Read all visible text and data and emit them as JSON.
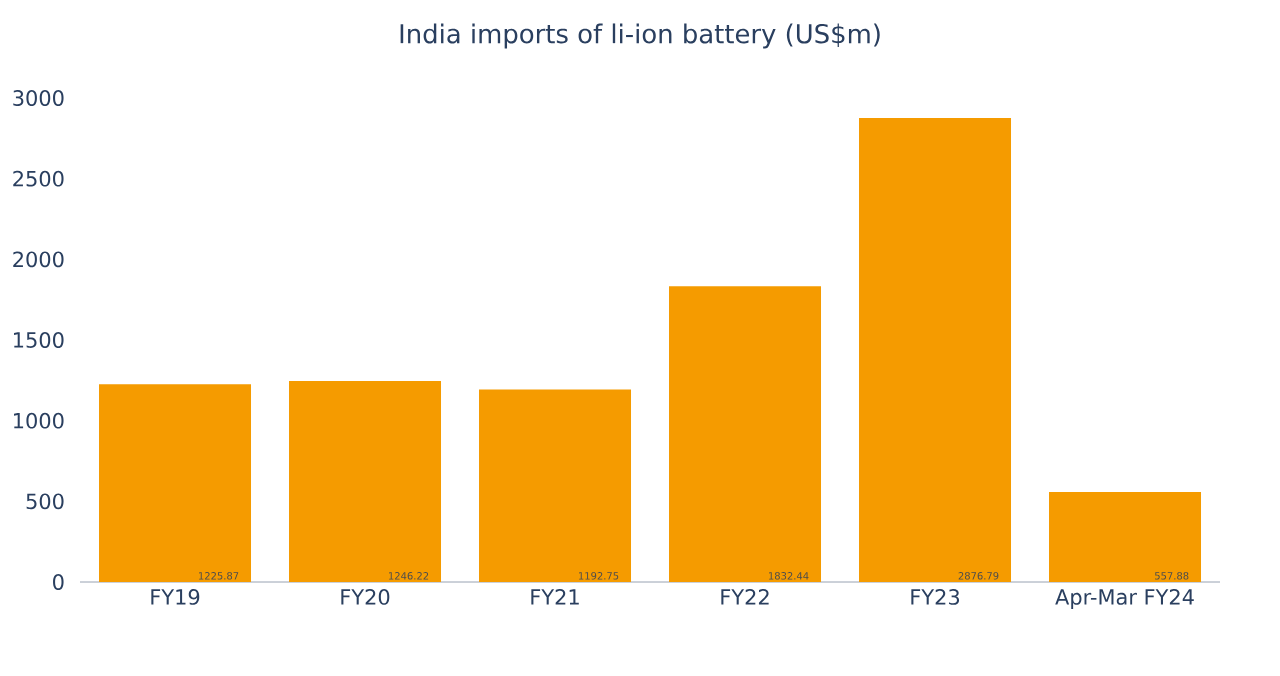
{
  "chart_data": {
    "type": "bar",
    "title": "India imports of li-ion battery (US$m)",
    "categories": [
      "FY19",
      "FY20",
      "FY21",
      "FY22",
      "FY23",
      "Apr-Mar FY24"
    ],
    "values": [
      1225.87,
      1246.22,
      1192.75,
      1832.44,
      2876.79,
      557.88
    ],
    "color": "#f59b00",
    "ylim": [
      0,
      3000
    ],
    "yticks": [
      0,
      500,
      1000,
      1500,
      2000,
      2500,
      3000
    ],
    "data_labels": true
  }
}
